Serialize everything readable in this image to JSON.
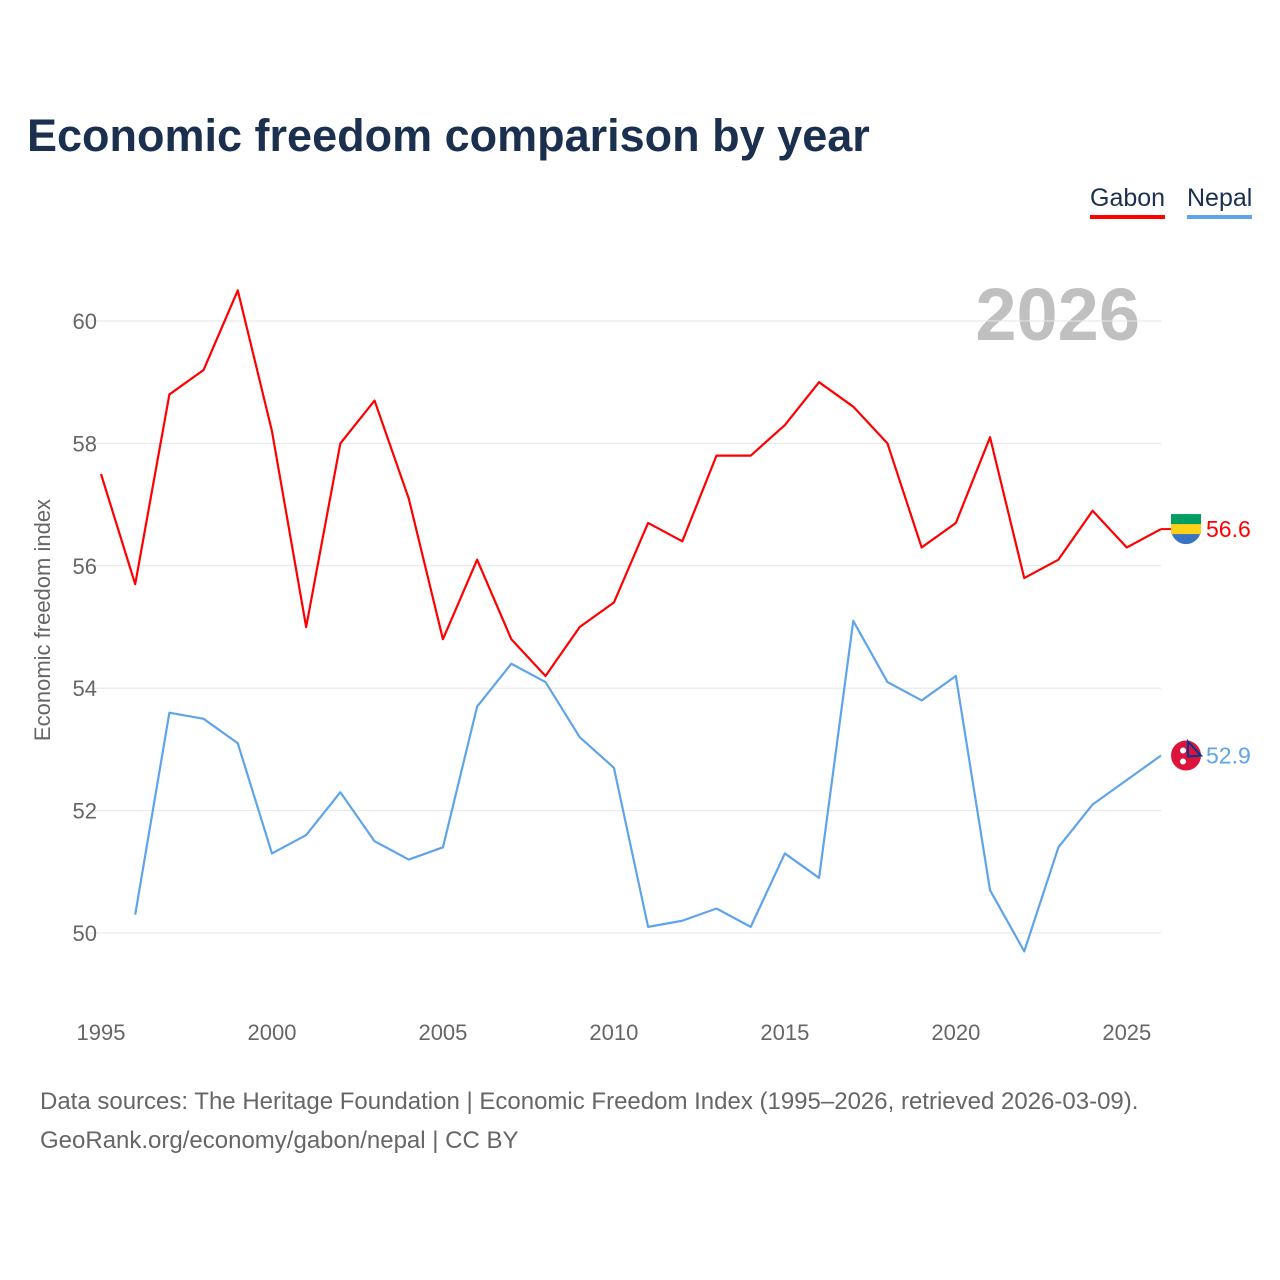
{
  "chart_data": {
    "type": "line",
    "title": "Economic freedom comparison by year",
    "ylabel": "Economic freedom index",
    "xlabel": "",
    "xlim": [
      1995,
      2026
    ],
    "ylim": [
      49,
      61
    ],
    "x_ticks": [
      1995,
      2000,
      2005,
      2010,
      2015,
      2020,
      2025
    ],
    "y_ticks": [
      50,
      52,
      54,
      56,
      58,
      60
    ],
    "grid": true,
    "legend_position": "top-right",
    "year_watermark": "2026",
    "series": [
      {
        "name": "Gabon",
        "color": "#ff0000",
        "end_label": "56.6",
        "x": [
          1995,
          1996,
          1997,
          1998,
          1999,
          2000,
          2001,
          2002,
          2003,
          2004,
          2005,
          2006,
          2007,
          2008,
          2009,
          2010,
          2011,
          2012,
          2013,
          2014,
          2015,
          2016,
          2017,
          2018,
          2019,
          2020,
          2021,
          2022,
          2023,
          2024,
          2025,
          2026
        ],
        "values": [
          57.5,
          55.7,
          58.8,
          59.2,
          60.5,
          58.2,
          55.0,
          58.0,
          58.7,
          57.1,
          54.8,
          56.1,
          54.8,
          54.2,
          55.0,
          55.4,
          56.7,
          56.4,
          57.8,
          57.8,
          58.3,
          59.0,
          58.6,
          58.0,
          56.3,
          56.7,
          58.1,
          55.8,
          56.1,
          56.9,
          56.3,
          56.6
        ]
      },
      {
        "name": "Nepal",
        "color": "#5fa4ea",
        "end_label": "52.9",
        "x": [
          1996,
          1997,
          1998,
          1999,
          2000,
          2001,
          2002,
          2003,
          2004,
          2005,
          2006,
          2007,
          2008,
          2009,
          2010,
          2011,
          2012,
          2013,
          2014,
          2015,
          2016,
          2017,
          2018,
          2019,
          2020,
          2021,
          2022,
          2023,
          2024,
          2025,
          2026
        ],
        "values": [
          50.3,
          53.6,
          53.5,
          53.1,
          51.3,
          51.6,
          52.3,
          51.5,
          51.2,
          51.4,
          53.7,
          54.4,
          54.1,
          53.2,
          52.7,
          50.1,
          50.2,
          50.4,
          50.1,
          51.3,
          50.9,
          55.1,
          54.1,
          53.8,
          54.2,
          50.7,
          49.7,
          51.4,
          52.1,
          52.5,
          52.9
        ]
      }
    ]
  },
  "footer": {
    "line1": "Data sources: The Heritage Foundation | Economic Freedom Index (1995–2026, retrieved 2026-03-09).",
    "line2": "GeoRank.org/economy/gabon/nepal | CC BY"
  }
}
